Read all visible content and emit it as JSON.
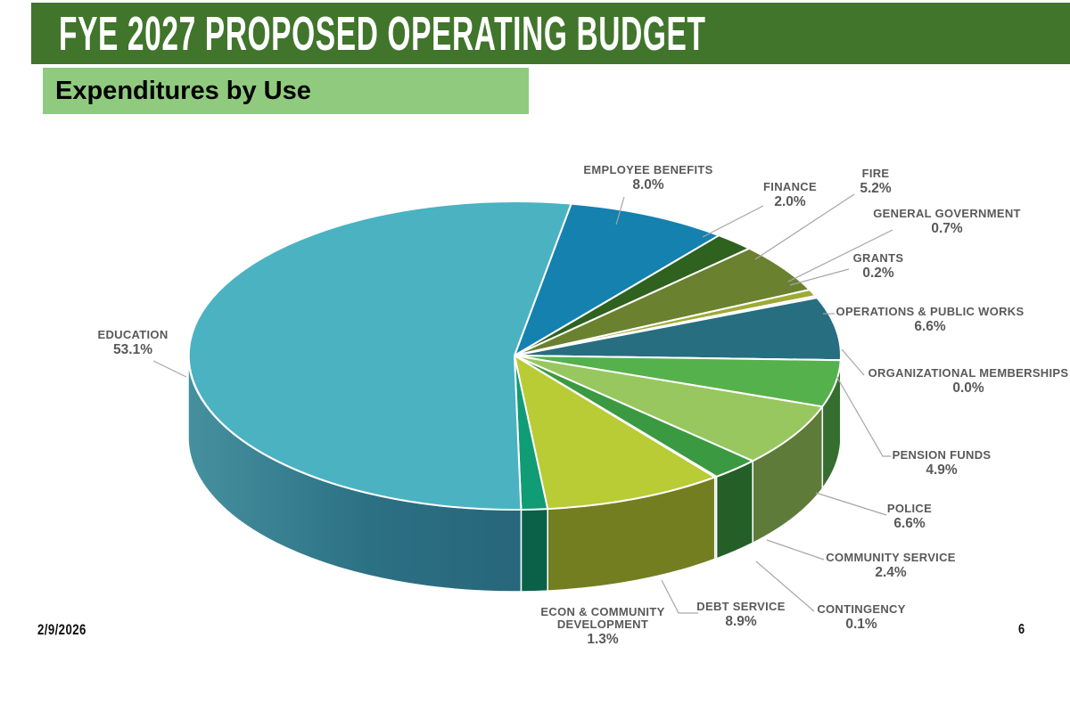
{
  "slide": {
    "title": "FYE 2027 PROPOSED OPERATING BUDGET",
    "subtitle": "Expenditures by Use",
    "date": "2/9/2026",
    "page_number": "6"
  },
  "colors": {
    "header_bg": "#40752B",
    "subtitle_bg": "#90CA7F",
    "label_text": "#595959",
    "leader_line": "#A6A6A6",
    "slice_gap": "#FFFFFF"
  },
  "chart_data": {
    "type": "pie",
    "style": "3d-pie",
    "title": "Expenditures by Use",
    "unit": "percent",
    "total": 100.0,
    "start_angle_deg": -80,
    "label_position": "outside-with-leader-lines",
    "legend": "none",
    "slices": [
      {
        "label": "EMPLOYEE BENEFITS",
        "value": 8.0,
        "pct_label": "8.0%",
        "color": "#1581AF"
      },
      {
        "label": "FINANCE",
        "value": 2.0,
        "pct_label": "2.0%",
        "color": "#2F611F"
      },
      {
        "label": "FIRE",
        "value": 5.2,
        "pct_label": "5.2%",
        "color": "#6A8130"
      },
      {
        "label": "GENERAL GOVERNMENT",
        "value": 0.7,
        "pct_label": "0.7%",
        "color": "#9DAB36"
      },
      {
        "label": "GRANTS",
        "value": 0.2,
        "pct_label": "0.2%",
        "color": "#BFC996"
      },
      {
        "label": "OPERATIONS & PUBLIC WORKS",
        "value": 6.6,
        "pct_label": "6.6%",
        "color": "#276E80"
      },
      {
        "label": "ORGANIZATIONAL MEMBERSHIPS",
        "value": 0.0,
        "pct_label": "0.0%",
        "color": "#4CAE4A"
      },
      {
        "label": "PENSION FUNDS",
        "value": 4.9,
        "pct_label": "4.9%",
        "color": "#55B14C"
      },
      {
        "label": "POLICE",
        "value": 6.6,
        "pct_label": "6.6%",
        "color": "#97C75E"
      },
      {
        "label": "COMMUNITY SERVICE",
        "value": 2.4,
        "pct_label": "2.4%",
        "color": "#3B9A41"
      },
      {
        "label": "CONTINGENCY",
        "value": 0.1,
        "pct_label": "0.1%",
        "color": "#E4EDDC"
      },
      {
        "label": "DEBT SERVICE",
        "value": 8.9,
        "pct_label": "8.9%",
        "color": "#B9CB35"
      },
      {
        "label": "ECON & COMMUNITY DEVELOPMENT",
        "value": 1.3,
        "pct_label": "1.3%",
        "color": "#109C74"
      },
      {
        "label": "EDUCATION",
        "value": 53.1,
        "pct_label": "53.1%",
        "color": "#4BB2C2"
      }
    ]
  }
}
